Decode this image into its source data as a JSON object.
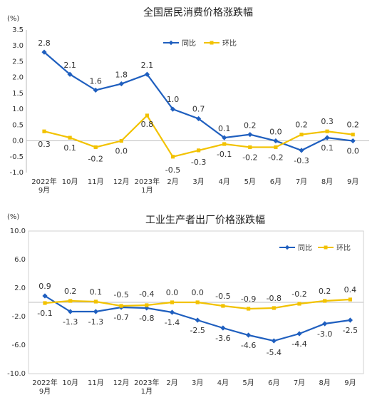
{
  "chart_data": [
    {
      "type": "line",
      "title": "全国居民消费价格涨跌幅",
      "ylabel": "(%)",
      "ylim": [
        -1.0,
        3.5
      ],
      "yticks": [
        "3.5",
        "3.0",
        "2.5",
        "2.0",
        "1.5",
        "1.0",
        "0.5",
        "0.0",
        "-0.5",
        "-1.0"
      ],
      "categories": [
        "2022年9月",
        "10月",
        "11月",
        "12月",
        "2023年1月",
        "2月",
        "3月",
        "4月",
        "5月",
        "6月",
        "7月",
        "8月",
        "9月"
      ],
      "category_labels": [
        [
          "2022年",
          "9月"
        ],
        [
          "10月"
        ],
        [
          "11月"
        ],
        [
          "12月"
        ],
        [
          "2023年",
          "1月"
        ],
        [
          "2月"
        ],
        [
          "3月"
        ],
        [
          "4月"
        ],
        [
          "5月"
        ],
        [
          "6月"
        ],
        [
          "7月"
        ],
        [
          "8月"
        ],
        [
          "9月"
        ]
      ],
      "legend_position": "top-right",
      "series": [
        {
          "name": "同比",
          "color": "#1f5fbf",
          "marker": "diamond",
          "values": [
            2.8,
            2.1,
            1.6,
            1.8,
            2.1,
            1.0,
            0.7,
            0.1,
            0.2,
            0.0,
            -0.3,
            0.1,
            0.0
          ],
          "labels": [
            "2.8",
            "2.1",
            "1.6",
            "1.8",
            "2.1",
            "1.0",
            "0.7",
            "0.1",
            "0.2",
            "0.0",
            "-0.3",
            "0.1",
            "0.0"
          ]
        },
        {
          "name": "环比",
          "color": "#f2c200",
          "marker": "square",
          "values": [
            0.3,
            0.1,
            -0.2,
            0.0,
            0.8,
            -0.5,
            -0.3,
            -0.1,
            -0.2,
            -0.2,
            0.2,
            0.3,
            0.2
          ],
          "labels": [
            "0.3",
            "0.1",
            "-0.2",
            "0.0",
            "0.8",
            "-0.5",
            "-0.3",
            "-0.1",
            "-0.2",
            "-0.2",
            "0.2",
            "0.3",
            "0.2"
          ]
        }
      ]
    },
    {
      "type": "line",
      "title": "工业生产者出厂价格涨跌幅",
      "ylabel": "(%)",
      "ylim": [
        -10.0,
        10.0
      ],
      "yticks": [
        "10.0",
        "6.0",
        "2.0",
        "-2.0",
        "-6.0",
        "-10.0"
      ],
      "categories": [
        "2022年9月",
        "10月",
        "11月",
        "12月",
        "2023年1月",
        "2月",
        "3月",
        "4月",
        "5月",
        "6月",
        "7月",
        "8月",
        "9月"
      ],
      "category_labels": [
        [
          "2022年",
          "9月"
        ],
        [
          "10月"
        ],
        [
          "11月"
        ],
        [
          "12月"
        ],
        [
          "2023年",
          "1月"
        ],
        [
          "2月"
        ],
        [
          "3月"
        ],
        [
          "4月"
        ],
        [
          "5月"
        ],
        [
          "6月"
        ],
        [
          "7月"
        ],
        [
          "8月"
        ],
        [
          "9月"
        ]
      ],
      "legend_position": "top-right",
      "series": [
        {
          "name": "同比",
          "color": "#1f5fbf",
          "marker": "diamond",
          "values": [
            0.9,
            -1.3,
            -1.3,
            -0.7,
            -0.8,
            -1.4,
            -2.5,
            -3.6,
            -4.6,
            -5.4,
            -4.4,
            -3.0,
            -2.5
          ],
          "labels": [
            "0.9",
            "-1.3",
            "-1.3",
            "-0.7",
            "-0.8",
            "-1.4",
            "-2.5",
            "-3.6",
            "-4.6",
            "-5.4",
            "-4.4",
            "-3.0",
            "-2.5"
          ]
        },
        {
          "name": "环比",
          "color": "#f2c200",
          "marker": "square",
          "values": [
            -0.1,
            0.2,
            0.1,
            -0.5,
            -0.4,
            0.0,
            0.0,
            -0.5,
            -0.9,
            -0.8,
            -0.2,
            0.2,
            0.4
          ],
          "labels": [
            "-0.1",
            "0.2",
            "0.1",
            "-0.5",
            "-0.4",
            "0.0",
            "0.0",
            "-0.5",
            "-0.9",
            "-0.8",
            "-0.2",
            "0.2",
            "0.4"
          ]
        }
      ]
    }
  ]
}
